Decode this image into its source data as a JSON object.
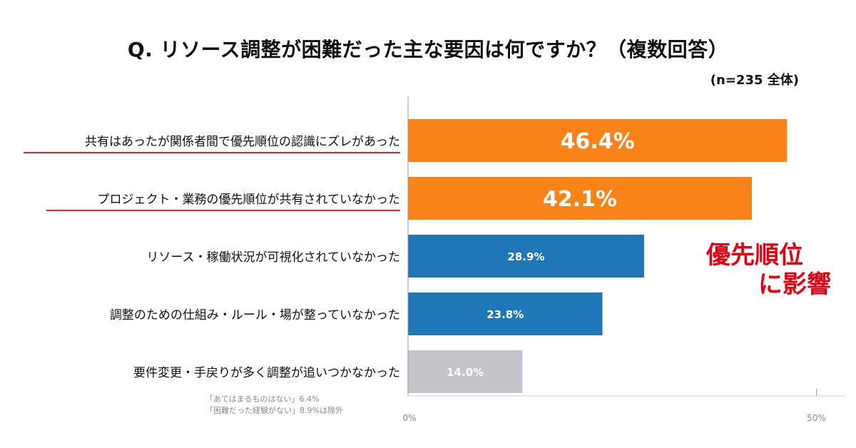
{
  "title": "Q. リソース調整が困難だった主な要因は何ですか？（複数回答）",
  "sample_label": "(n=235 全体)",
  "notes": [
    "「あてはまるものはない」6.4%",
    "「困難だった経験がない」8.9%は除外"
  ],
  "callout": {
    "line1": "優先順位",
    "line2": "に影響",
    "color": "#e60012"
  },
  "chart_data": {
    "type": "bar",
    "orientation": "horizontal",
    "categories": [
      "共有はあったが関係者間で優先順位の認識にズレがあった",
      "プロジェクト・業務の優先順位が共有されていなかった",
      "リソース・稼働状況が可視化されていなかった",
      "調整のための仕組み・ルール・場が整っていなかった",
      "要件変更・手戻りが多く調整が追いつかなかった"
    ],
    "values": [
      46.4,
      42.1,
      28.9,
      23.8,
      14.0
    ],
    "value_labels": [
      "46.4%",
      "42.1%",
      "28.9%",
      "23.8%",
      "14.0%"
    ],
    "bar_colors": [
      "#fa8318",
      "#fa8318",
      "#1f77b8",
      "#1f77b8",
      "#c3c5cb"
    ],
    "underlined_categories": [
      0,
      1
    ],
    "underline_color": "#e60012",
    "xlim": [
      0,
      50
    ],
    "xticks": [
      {
        "value": 0,
        "label": "0%"
      },
      {
        "value": 50,
        "label": "50%"
      }
    ],
    "grid": false
  }
}
